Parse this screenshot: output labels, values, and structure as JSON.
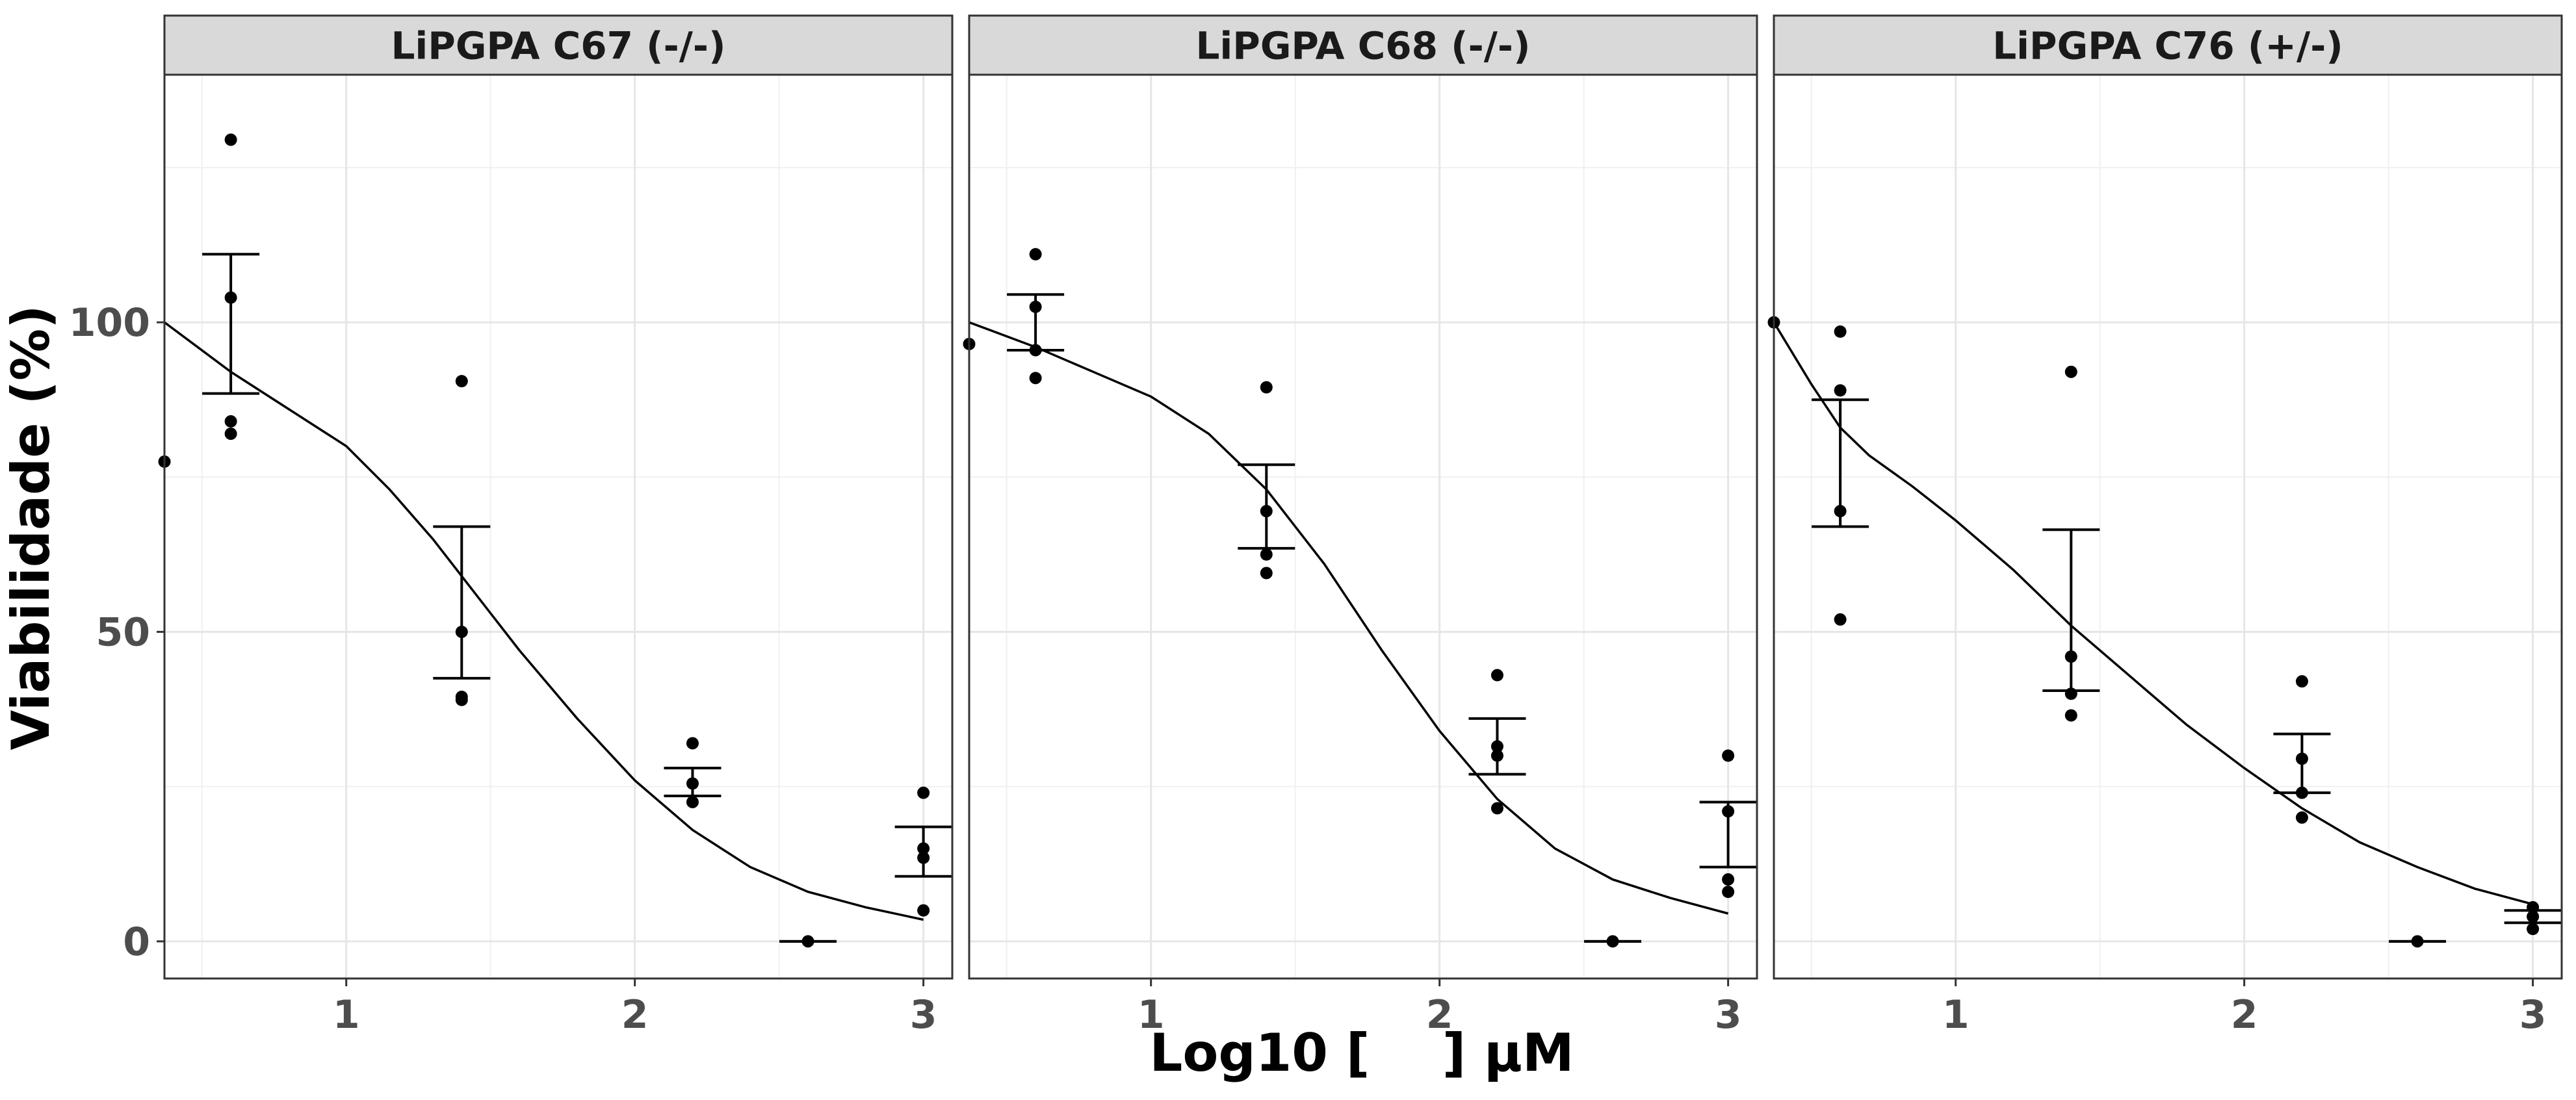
{
  "chart_data": {
    "type": "scatter",
    "xlabel": "Log10 [    ] µM",
    "ylabel": "Viabilidade (%)",
    "xlim": [
      0.37,
      3.1
    ],
    "ylim": [
      -6,
      140
    ],
    "x_ticks": [
      1,
      2,
      3
    ],
    "x_tick_labels": [
      "1",
      "2",
      "3"
    ],
    "y_ticks": [
      0,
      50,
      100
    ],
    "y_tick_labels": [
      "0",
      "50",
      "100"
    ],
    "grid": true,
    "panels": [
      {
        "title": "LiPGPA C67 (-/-)",
        "points": [
          {
            "x": 0.37,
            "y": 77.5
          },
          {
            "x": 0.6,
            "y": 129.5
          },
          {
            "x": 0.6,
            "y": 104
          },
          {
            "x": 0.6,
            "y": 84
          },
          {
            "x": 0.6,
            "y": 82
          },
          {
            "x": 1.4,
            "y": 90.5
          },
          {
            "x": 1.4,
            "y": 50
          },
          {
            "x": 1.4,
            "y": 39.5
          },
          {
            "x": 1.4,
            "y": 39
          },
          {
            "x": 2.2,
            "y": 32
          },
          {
            "x": 2.2,
            "y": 25.5
          },
          {
            "x": 2.2,
            "y": 22.5
          },
          {
            "x": 2.6,
            "y": 0
          },
          {
            "x": 3.0,
            "y": 24
          },
          {
            "x": 3.0,
            "y": 15
          },
          {
            "x": 3.0,
            "y": 13.5
          },
          {
            "x": 3.0,
            "y": 5
          }
        ],
        "error_bars": [
          {
            "x": 0.6,
            "low": 88.5,
            "high": 111
          },
          {
            "x": 1.4,
            "low": 42.5,
            "high": 67
          },
          {
            "x": 2.2,
            "low": 23.5,
            "high": 28
          },
          {
            "x": 2.6,
            "low": 0,
            "high": 0
          },
          {
            "x": 3.0,
            "low": 10.5,
            "high": 18.5
          }
        ],
        "fit_curve": [
          {
            "x": 0.37,
            "y": 100
          },
          {
            "x": 0.6,
            "y": 92
          },
          {
            "x": 0.8,
            "y": 86
          },
          {
            "x": 1.0,
            "y": 80
          },
          {
            "x": 1.15,
            "y": 73
          },
          {
            "x": 1.3,
            "y": 65
          },
          {
            "x": 1.45,
            "y": 56
          },
          {
            "x": 1.6,
            "y": 47
          },
          {
            "x": 1.8,
            "y": 36
          },
          {
            "x": 2.0,
            "y": 26
          },
          {
            "x": 2.2,
            "y": 18
          },
          {
            "x": 2.4,
            "y": 12
          },
          {
            "x": 2.6,
            "y": 8
          },
          {
            "x": 2.8,
            "y": 5.5
          },
          {
            "x": 3.0,
            "y": 3.5
          }
        ]
      },
      {
        "title": "LiPGPA C68 (-/-)",
        "points": [
          {
            "x": 0.37,
            "y": 96.5
          },
          {
            "x": 0.6,
            "y": 111
          },
          {
            "x": 0.6,
            "y": 102.5
          },
          {
            "x": 0.6,
            "y": 95.5
          },
          {
            "x": 0.6,
            "y": 91
          },
          {
            "x": 1.4,
            "y": 89.5
          },
          {
            "x": 1.4,
            "y": 69.5
          },
          {
            "x": 1.4,
            "y": 62.5
          },
          {
            "x": 1.4,
            "y": 59.5
          },
          {
            "x": 2.2,
            "y": 43
          },
          {
            "x": 2.2,
            "y": 31.5
          },
          {
            "x": 2.2,
            "y": 30
          },
          {
            "x": 2.2,
            "y": 21.5
          },
          {
            "x": 2.6,
            "y": 0
          },
          {
            "x": 3.0,
            "y": 30
          },
          {
            "x": 3.0,
            "y": 21
          },
          {
            "x": 3.0,
            "y": 10
          },
          {
            "x": 3.0,
            "y": 8
          }
        ],
        "error_bars": [
          {
            "x": 0.6,
            "low": 95.5,
            "high": 104.5
          },
          {
            "x": 1.4,
            "low": 63.5,
            "high": 77
          },
          {
            "x": 2.2,
            "low": 27,
            "high": 36
          },
          {
            "x": 2.6,
            "low": 0,
            "high": 0
          },
          {
            "x": 3.0,
            "low": 12,
            "high": 22.5
          }
        ],
        "fit_curve": [
          {
            "x": 0.37,
            "y": 100
          },
          {
            "x": 0.6,
            "y": 96
          },
          {
            "x": 0.8,
            "y": 92
          },
          {
            "x": 1.0,
            "y": 88
          },
          {
            "x": 1.2,
            "y": 82
          },
          {
            "x": 1.4,
            "y": 73
          },
          {
            "x": 1.6,
            "y": 61
          },
          {
            "x": 1.8,
            "y": 47
          },
          {
            "x": 2.0,
            "y": 34
          },
          {
            "x": 2.2,
            "y": 23
          },
          {
            "x": 2.4,
            "y": 15
          },
          {
            "x": 2.6,
            "y": 10
          },
          {
            "x": 2.8,
            "y": 7
          },
          {
            "x": 3.0,
            "y": 4.5
          }
        ]
      },
      {
        "title": "LiPGPA C76 (+/-)",
        "points": [
          {
            "x": 0.37,
            "y": 100
          },
          {
            "x": 0.6,
            "y": 98.5
          },
          {
            "x": 0.6,
            "y": 89
          },
          {
            "x": 0.6,
            "y": 69.5
          },
          {
            "x": 0.6,
            "y": 52
          },
          {
            "x": 1.4,
            "y": 92
          },
          {
            "x": 1.4,
            "y": 46
          },
          {
            "x": 1.4,
            "y": 40
          },
          {
            "x": 1.4,
            "y": 36.5
          },
          {
            "x": 2.2,
            "y": 42
          },
          {
            "x": 2.2,
            "y": 29.5
          },
          {
            "x": 2.2,
            "y": 24
          },
          {
            "x": 2.2,
            "y": 20
          },
          {
            "x": 2.6,
            "y": 0
          },
          {
            "x": 3.0,
            "y": 5.5
          },
          {
            "x": 3.0,
            "y": 4
          },
          {
            "x": 3.0,
            "y": 2
          }
        ],
        "error_bars": [
          {
            "x": 0.6,
            "low": 67,
            "high": 87.5
          },
          {
            "x": 1.4,
            "low": 40.5,
            "high": 66.5
          },
          {
            "x": 2.2,
            "low": 24,
            "high": 33.5
          },
          {
            "x": 2.6,
            "low": 0,
            "high": 0
          },
          {
            "x": 3.0,
            "low": 3,
            "high": 5
          }
        ],
        "fit_curve": [
          {
            "x": 0.37,
            "y": 100
          },
          {
            "x": 0.5,
            "y": 90
          },
          {
            "x": 0.6,
            "y": 83
          },
          {
            "x": 0.7,
            "y": 78.5
          },
          {
            "x": 0.85,
            "y": 73.5
          },
          {
            "x": 1.0,
            "y": 68
          },
          {
            "x": 1.2,
            "y": 60
          },
          {
            "x": 1.4,
            "y": 51
          },
          {
            "x": 1.6,
            "y": 43
          },
          {
            "x": 1.8,
            "y": 35
          },
          {
            "x": 2.0,
            "y": 28
          },
          {
            "x": 2.2,
            "y": 21.5
          },
          {
            "x": 2.4,
            "y": 16
          },
          {
            "x": 2.6,
            "y": 12
          },
          {
            "x": 2.8,
            "y": 8.5
          },
          {
            "x": 3.0,
            "y": 6
          }
        ]
      }
    ]
  }
}
